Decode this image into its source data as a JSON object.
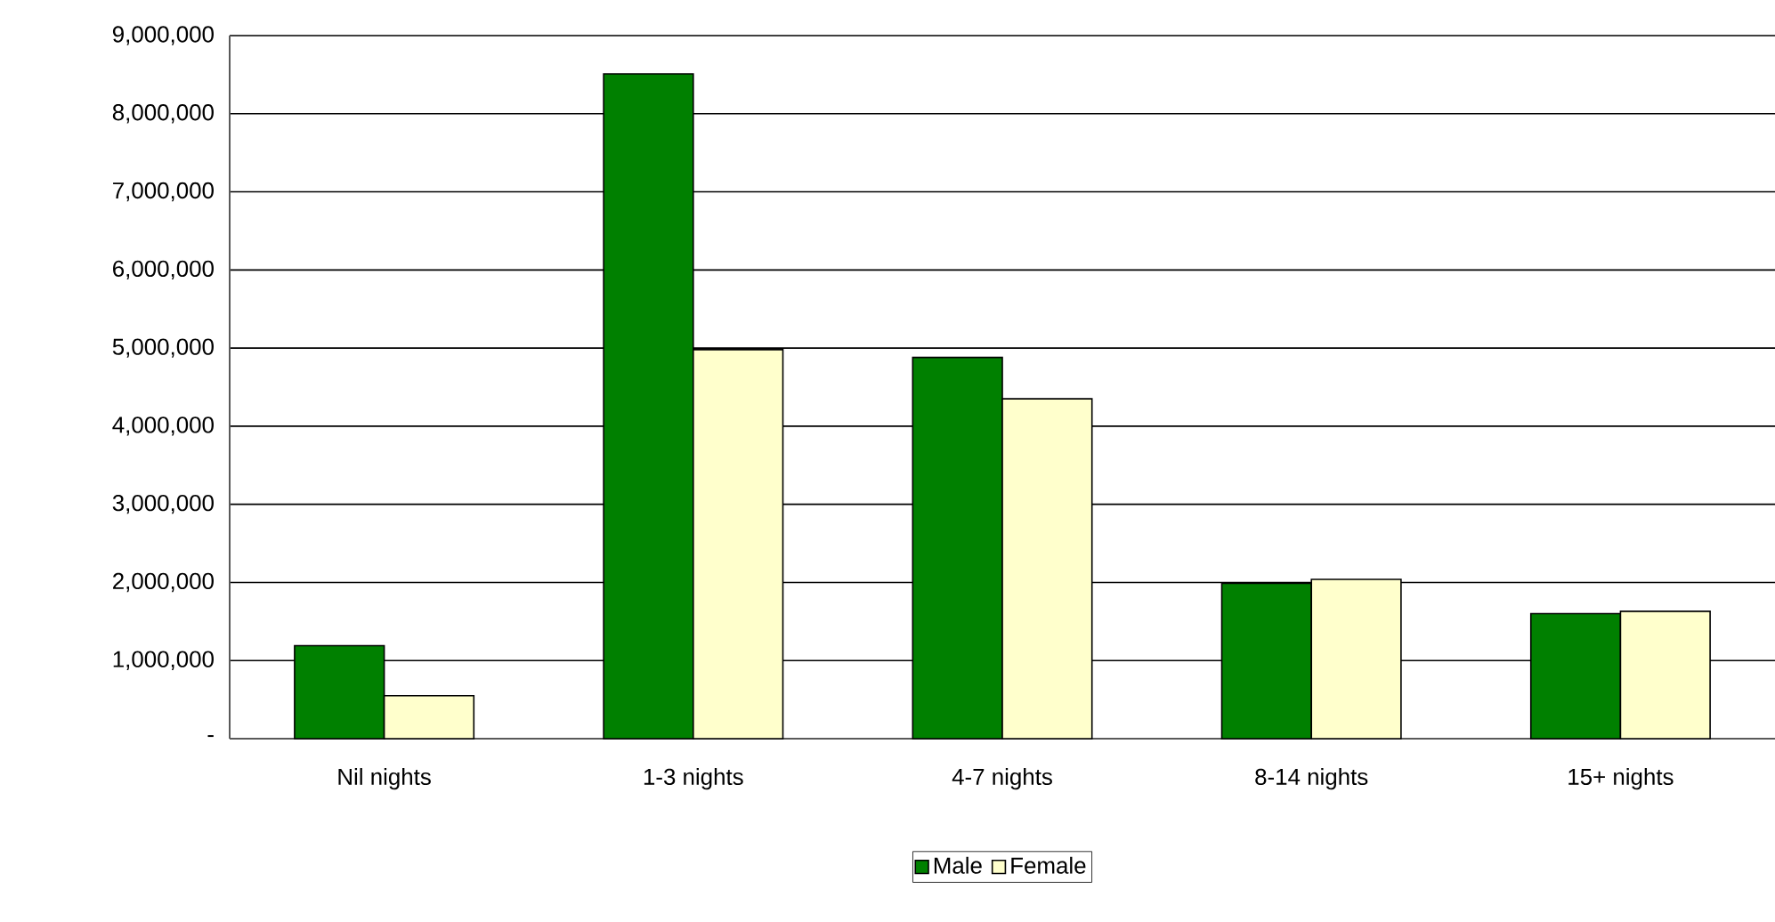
{
  "chart_data": {
    "type": "bar",
    "categories": [
      "Nil  nights",
      "1-3  nights",
      "4-7  nights",
      "8-14 nights",
      "15+  nights"
    ],
    "series": [
      {
        "name": "Male",
        "color": "#008000",
        "values": [
          1190000,
          8510000,
          4880000,
          1990000,
          1600000
        ]
      },
      {
        "name": "Female",
        "color": "#ffffcc",
        "values": [
          550000,
          4980000,
          4350000,
          2040000,
          1630000
        ]
      }
    ],
    "ylim": [
      0,
      9000000
    ],
    "yticks": [
      {
        "value": 0,
        "label": "-"
      },
      {
        "value": 1000000,
        "label": "1,000,000"
      },
      {
        "value": 2000000,
        "label": "2,000,000"
      },
      {
        "value": 3000000,
        "label": "3,000,000"
      },
      {
        "value": 4000000,
        "label": "4,000,000"
      },
      {
        "value": 5000000,
        "label": "5,000,000"
      },
      {
        "value": 6000000,
        "label": "6,000,000"
      },
      {
        "value": 7000000,
        "label": "7,000,000"
      },
      {
        "value": 8000000,
        "label": "8,000,000"
      },
      {
        "value": 9000000,
        "label": "9,000,000"
      }
    ],
    "grid": "y",
    "legend": "bottom"
  }
}
